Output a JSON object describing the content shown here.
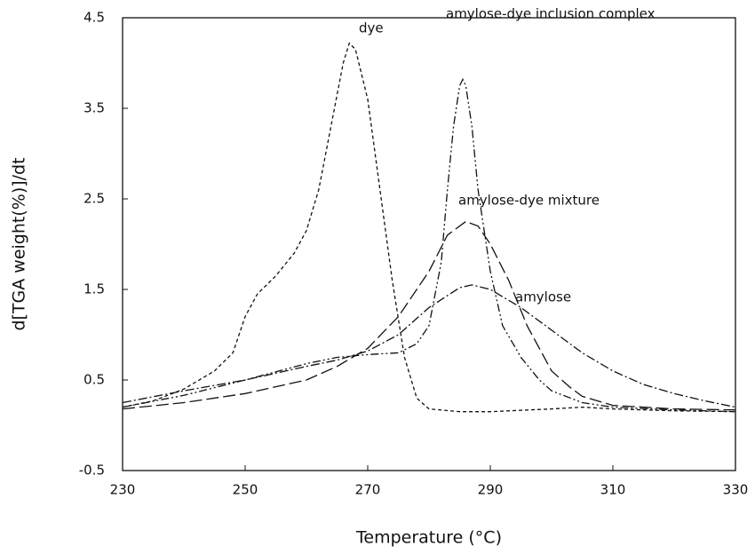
{
  "chart_data": {
    "type": "line",
    "xlabel": "Temperature (°C)",
    "ylabel": "d[TGA weight(%)]/dt",
    "xlim": [
      230,
      330
    ],
    "xticks": [
      230,
      250,
      270,
      290,
      310,
      330
    ],
    "ylim": [
      -0.5,
      4.5
    ],
    "yticks": [
      -0.5,
      0.5,
      1.5,
      2.5,
      3.5,
      4.5
    ],
    "series": [
      {
        "name": "dye",
        "color": "#111111",
        "x": [
          230,
          235,
          240,
          245,
          248,
          250,
          252,
          255,
          258,
          260,
          262,
          264,
          266,
          267,
          268,
          270,
          272,
          274,
          276,
          278,
          280,
          285,
          290,
          300,
          305,
          310,
          320,
          330
        ],
        "values": [
          0.2,
          0.27,
          0.4,
          0.6,
          0.8,
          1.2,
          1.45,
          1.65,
          1.9,
          2.15,
          2.6,
          3.3,
          4.0,
          4.22,
          4.15,
          3.6,
          2.6,
          1.6,
          0.75,
          0.3,
          0.18,
          0.15,
          0.15,
          0.18,
          0.2,
          0.18,
          0.16,
          0.15
        ]
      },
      {
        "name": "amylose-dye inclusion complex",
        "color": "#111111",
        "x": [
          230,
          240,
          250,
          260,
          265,
          270,
          275,
          278,
          280,
          282,
          283,
          284,
          285,
          285.5,
          286,
          287,
          288,
          290,
          292,
          295,
          298,
          300,
          305,
          310,
          320,
          330
        ],
        "values": [
          0.2,
          0.33,
          0.5,
          0.68,
          0.75,
          0.78,
          0.8,
          0.9,
          1.1,
          1.8,
          2.6,
          3.3,
          3.75,
          3.82,
          3.75,
          3.3,
          2.6,
          1.7,
          1.1,
          0.75,
          0.5,
          0.38,
          0.25,
          0.2,
          0.17,
          0.15
        ]
      },
      {
        "name": "amylose-dye mixture",
        "color": "#111111",
        "x": [
          230,
          240,
          250,
          260,
          265,
          270,
          275,
          280,
          283,
          286,
          288,
          290,
          293,
          296,
          300,
          303,
          305,
          310,
          320,
          330
        ],
        "values": [
          0.18,
          0.25,
          0.35,
          0.5,
          0.65,
          0.85,
          1.2,
          1.7,
          2.1,
          2.25,
          2.2,
          2.0,
          1.6,
          1.1,
          0.6,
          0.42,
          0.32,
          0.22,
          0.18,
          0.17
        ]
      },
      {
        "name": "amylose",
        "color": "#111111",
        "x": [
          230,
          240,
          250,
          260,
          265,
          270,
          275,
          280,
          285,
          287,
          290,
          295,
          300,
          305,
          310,
          315,
          320,
          325,
          330
        ],
        "values": [
          0.25,
          0.38,
          0.5,
          0.65,
          0.72,
          0.82,
          1.0,
          1.3,
          1.52,
          1.55,
          1.5,
          1.3,
          1.05,
          0.8,
          0.6,
          0.45,
          0.35,
          0.27,
          0.2
        ]
      }
    ]
  }
}
